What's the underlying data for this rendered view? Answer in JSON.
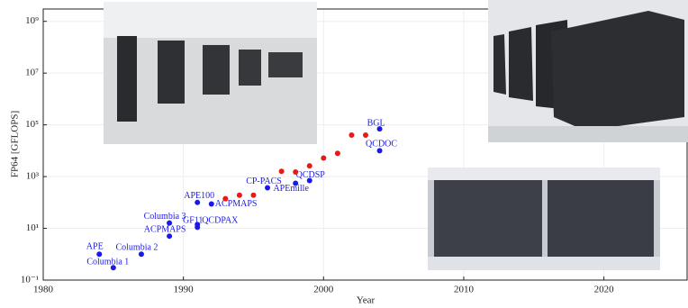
{
  "chart_data": {
    "type": "scatter",
    "x_label": "Year",
    "y_label": "FP64 [GFLOPS]",
    "xlim": [
      1980,
      2026
    ],
    "xticks": [
      1980,
      1990,
      2000,
      2010,
      2020
    ],
    "ylim": [
      0.1,
      3000000000
    ],
    "log_y": true,
    "grid": true,
    "yticks": [
      {
        "value": 0.1,
        "label": "10⁻¹"
      },
      {
        "value": 10,
        "label": "10¹"
      },
      {
        "value": 1000,
        "label": "10³"
      },
      {
        "value": 100000,
        "label": "10⁵"
      },
      {
        "value": 10000000,
        "label": "10⁷"
      },
      {
        "value": 1000000000,
        "label": "10⁹"
      }
    ],
    "series": [
      {
        "color": "#1a1ae6",
        "x": [
          1984,
          1985,
          1987,
          1989,
          1989,
          1991,
          1991,
          1991,
          1992,
          1996,
          1998,
          1999,
          2004,
          2004
        ],
        "values": [
          1,
          0.3,
          1,
          5,
          16,
          11,
          14,
          100,
          87,
          370,
          550,
          700,
          70000,
          10000
        ],
        "labels": [
          "APE",
          "Columbia 1",
          "Columbia 2",
          "ACPMAPS",
          "Columbia 3",
          "GF11",
          "QCDPAX",
          "APE100",
          "ACPMAPS",
          "CP-PACS",
          "APEmille",
          "QCDSP",
          "BGL",
          "QCDOC"
        ]
      },
      {
        "color": "#e61a1a",
        "x": [
          1993,
          1994,
          1995,
          1997,
          1998,
          1999,
          2000,
          2001,
          2002,
          2003
        ],
        "values": [
          140,
          190,
          190,
          1600,
          1500,
          2600,
          5200,
          7900,
          40000,
          40000
        ]
      }
    ]
  }
}
